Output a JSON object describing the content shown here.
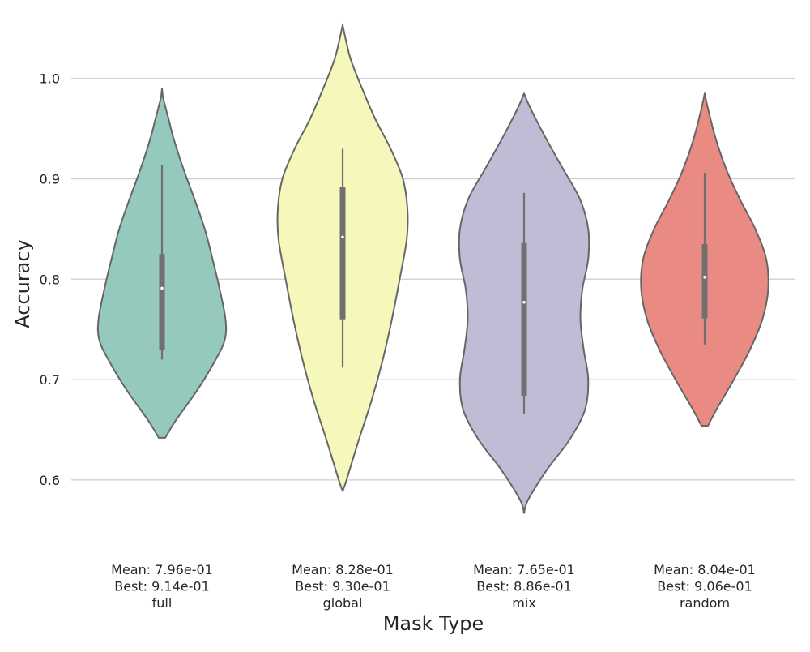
{
  "chart_data": {
    "type": "violin",
    "xlabel": "Mask Type",
    "ylabel": "Accuracy",
    "ylim": [
      0.545,
      1.07
    ],
    "yticks": [
      0.6,
      0.7,
      0.8,
      0.9,
      1.0
    ],
    "ytick_labels": [
      "0.6",
      "0.7",
      "0.8",
      "0.9",
      "1.0"
    ],
    "grid": "horizontal",
    "categories": [
      {
        "name": "full",
        "color": "#96c9be",
        "mean_label": "Mean: 7.96e-01",
        "best_label": "Best: 9.14e-01",
        "range": [
          0.642,
          0.99
        ],
        "whisker": [
          0.72,
          0.914
        ],
        "quartiles": [
          0.73,
          0.825
        ],
        "median": 0.791,
        "density": [
          [
            0.642,
            0.05
          ],
          [
            0.66,
            0.22
          ],
          [
            0.69,
            0.55
          ],
          [
            0.72,
            0.83
          ],
          [
            0.74,
            0.97
          ],
          [
            0.76,
            0.98
          ],
          [
            0.79,
            0.89
          ],
          [
            0.82,
            0.78
          ],
          [
            0.85,
            0.66
          ],
          [
            0.88,
            0.5
          ],
          [
            0.91,
            0.33
          ],
          [
            0.94,
            0.18
          ],
          [
            0.96,
            0.1
          ],
          [
            0.98,
            0.02
          ],
          [
            0.99,
            0.0
          ]
        ]
      },
      {
        "name": "global",
        "color": "#f6f7bb",
        "mean_label": "Mean: 8.28e-01",
        "best_label": "Best: 9.30e-01",
        "range": [
          0.589,
          1.054
        ],
        "whisker": [
          0.712,
          0.93
        ],
        "quartiles": [
          0.76,
          0.892
        ],
        "median": 0.842,
        "density": [
          [
            0.589,
            0.0
          ],
          [
            0.6,
            0.06
          ],
          [
            0.64,
            0.25
          ],
          [
            0.68,
            0.45
          ],
          [
            0.72,
            0.62
          ],
          [
            0.76,
            0.76
          ],
          [
            0.8,
            0.88
          ],
          [
            0.84,
            0.99
          ],
          [
            0.87,
            1.0
          ],
          [
            0.9,
            0.93
          ],
          [
            0.93,
            0.74
          ],
          [
            0.96,
            0.5
          ],
          [
            0.99,
            0.3
          ],
          [
            1.02,
            0.12
          ],
          [
            1.05,
            0.01
          ],
          [
            1.054,
            0.0
          ]
        ]
      },
      {
        "name": "mix",
        "color": "#c0bcd6",
        "mean_label": "Mean: 7.65e-01",
        "best_label": "Best: 8.86e-01",
        "range": [
          0.567,
          0.985
        ],
        "whisker": [
          0.666,
          0.886
        ],
        "quartiles": [
          0.684,
          0.836
        ],
        "median": 0.777,
        "density": [
          [
            0.567,
            0.0
          ],
          [
            0.58,
            0.06
          ],
          [
            0.61,
            0.35
          ],
          [
            0.64,
            0.7
          ],
          [
            0.67,
            0.94
          ],
          [
            0.7,
            0.99
          ],
          [
            0.73,
            0.92
          ],
          [
            0.76,
            0.87
          ],
          [
            0.79,
            0.9
          ],
          [
            0.82,
            0.99
          ],
          [
            0.85,
            0.99
          ],
          [
            0.88,
            0.86
          ],
          [
            0.91,
            0.6
          ],
          [
            0.94,
            0.34
          ],
          [
            0.97,
            0.1
          ],
          [
            0.985,
            0.0
          ]
        ]
      },
      {
        "name": "random",
        "color": "#e98b82",
        "mean_label": "Mean: 8.04e-01",
        "best_label": "Best: 9.06e-01",
        "range": [
          0.654,
          0.985
        ],
        "whisker": [
          0.735,
          0.906
        ],
        "quartiles": [
          0.761,
          0.835
        ],
        "median": 0.802,
        "density": [
          [
            0.654,
            0.05
          ],
          [
            0.67,
            0.18
          ],
          [
            0.7,
            0.45
          ],
          [
            0.73,
            0.7
          ],
          [
            0.76,
            0.89
          ],
          [
            0.79,
            0.98
          ],
          [
            0.82,
            0.95
          ],
          [
            0.85,
            0.78
          ],
          [
            0.88,
            0.54
          ],
          [
            0.91,
            0.33
          ],
          [
            0.94,
            0.17
          ],
          [
            0.97,
            0.05
          ],
          [
            0.985,
            0.0
          ]
        ]
      }
    ]
  }
}
